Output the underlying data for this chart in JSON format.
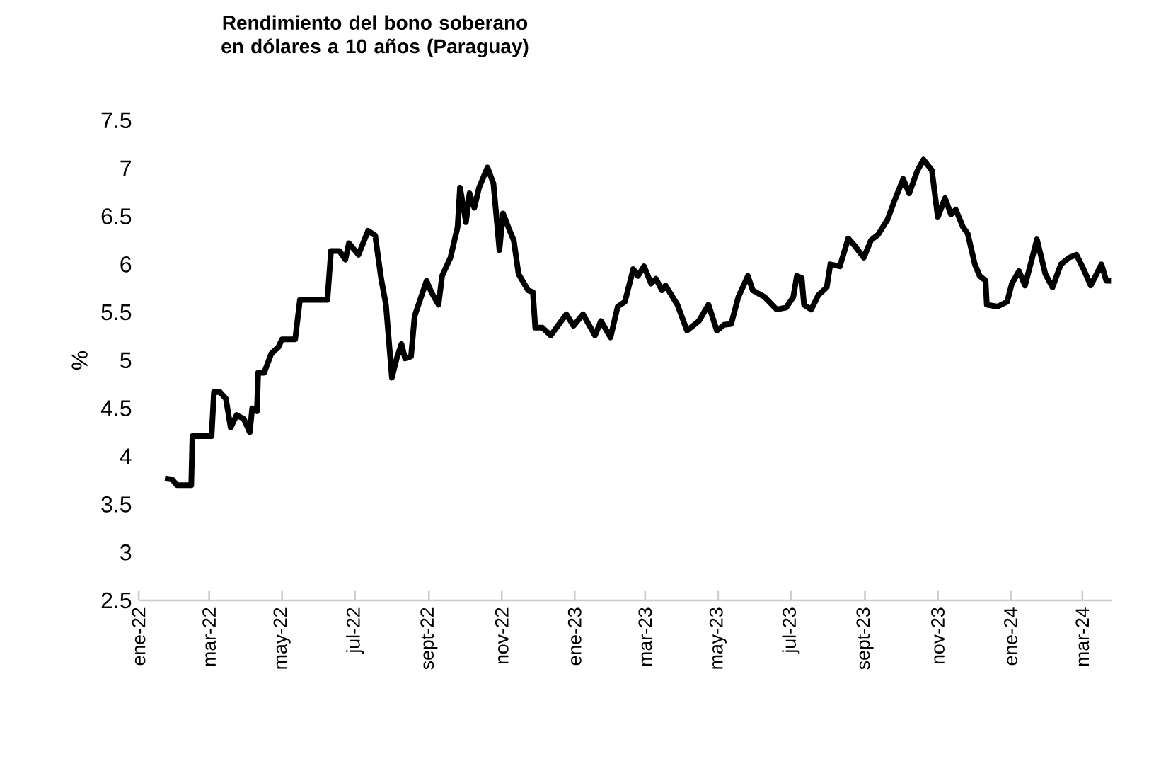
{
  "chart_data": {
    "type": "line",
    "title": "Rendimiento del bono soberano en dólares a 10 años (Paraguay)",
    "ylabel": "%",
    "xlim": [
      "2022-01-01",
      "2024-03-26"
    ],
    "xticks": [
      {
        "value": "2022-01-01",
        "label": "ene-22"
      },
      {
        "value": "2022-03-01",
        "label": "mar-22"
      },
      {
        "value": "2022-05-01",
        "label": "may-22"
      },
      {
        "value": "2022-07-01",
        "label": "jul-22"
      },
      {
        "value": "2022-09-01",
        "label": "sept-22"
      },
      {
        "value": "2022-11-01",
        "label": "nov-22"
      },
      {
        "value": "2023-01-01",
        "label": "ene-23"
      },
      {
        "value": "2023-03-01",
        "label": "mar-23"
      },
      {
        "value": "2023-05-01",
        "label": "may-23"
      },
      {
        "value": "2023-07-01",
        "label": "jul-23"
      },
      {
        "value": "2023-09-01",
        "label": "sept-23"
      },
      {
        "value": "2023-11-01",
        "label": "nov-23"
      },
      {
        "value": "2024-01-01",
        "label": "ene-24"
      },
      {
        "value": "2024-03-01",
        "label": "mar-24"
      }
    ],
    "ylim": [
      2.5,
      7.5
    ],
    "yticks": [
      2.5,
      3,
      3.5,
      4,
      4.5,
      5,
      5.5,
      6,
      6.5,
      7,
      7.5
    ],
    "grid": false,
    "marker": "none",
    "line_style": "solid",
    "series": [
      {
        "color": "#000000",
        "x": [
          "2022-01-23",
          "2022-01-29",
          "2022-02-02",
          "2022-02-14",
          "2022-02-15",
          "2022-03-03",
          "2022-03-05",
          "2022-03-10",
          "2022-03-15",
          "2022-03-19",
          "2022-03-24",
          "2022-03-30",
          "2022-04-04",
          "2022-04-06",
          "2022-04-10",
          "2022-04-11",
          "2022-04-16",
          "2022-04-22",
          "2022-04-28",
          "2022-05-01",
          "2022-05-12",
          "2022-05-16",
          "2022-06-08",
          "2022-06-11",
          "2022-06-18",
          "2022-06-23",
          "2022-06-26",
          "2022-07-04",
          "2022-07-12",
          "2022-07-18",
          "2022-07-23",
          "2022-07-27",
          "2022-08-01",
          "2022-08-05",
          "2022-08-09",
          "2022-08-12",
          "2022-08-17",
          "2022-08-20",
          "2022-08-30",
          "2022-09-03",
          "2022-09-09",
          "2022-09-12",
          "2022-09-19",
          "2022-09-25",
          "2022-09-27",
          "2022-10-02",
          "2022-10-05",
          "2022-10-09",
          "2022-10-13",
          "2022-10-20",
          "2022-10-25",
          "2022-10-30",
          "2022-11-02",
          "2022-11-07",
          "2022-11-11",
          "2022-11-15",
          "2022-11-23",
          "2022-11-27",
          "2022-11-29",
          "2022-12-05",
          "2022-12-12",
          "2022-12-25",
          "2022-12-31",
          "2023-01-08",
          "2023-01-18",
          "2023-01-23",
          "2023-01-31",
          "2023-02-06",
          "2023-02-12",
          "2023-02-19",
          "2023-02-23",
          "2023-02-28",
          "2023-03-06",
          "2023-03-10",
          "2023-03-15",
          "2023-03-18",
          "2023-03-28",
          "2023-04-05",
          "2023-04-15",
          "2023-04-23",
          "2023-04-30",
          "2023-05-06",
          "2023-05-12",
          "2023-05-18",
          "2023-05-26",
          "2023-05-30",
          "2023-06-09",
          "2023-06-19",
          "2023-06-27",
          "2023-07-03",
          "2023-07-06",
          "2023-07-10",
          "2023-07-12",
          "2023-07-18",
          "2023-07-24",
          "2023-07-31",
          "2023-08-03",
          "2023-08-11",
          "2023-08-18",
          "2023-08-23",
          "2023-08-31",
          "2023-09-06",
          "2023-09-12",
          "2023-09-20",
          "2023-09-25",
          "2023-10-03",
          "2023-10-08",
          "2023-10-15",
          "2023-10-20",
          "2023-10-27",
          "2023-11-01",
          "2023-11-07",
          "2023-11-12",
          "2023-11-16",
          "2023-11-22",
          "2023-11-26",
          "2023-12-02",
          "2023-12-06",
          "2023-12-11",
          "2023-12-12",
          "2023-12-21",
          "2023-12-29",
          "2024-01-02",
          "2024-01-08",
          "2024-01-13",
          "2024-01-23",
          "2024-01-30",
          "2024-02-05",
          "2024-02-12",
          "2024-02-19",
          "2024-02-25",
          "2024-03-02",
          "2024-03-08",
          "2024-03-17",
          "2024-03-21",
          "2024-03-25"
        ],
        "values": [
          3.77,
          3.76,
          3.7,
          3.7,
          4.21,
          4.21,
          4.67,
          4.67,
          4.6,
          4.3,
          4.43,
          4.39,
          4.25,
          4.5,
          4.47,
          4.87,
          4.87,
          5.07,
          5.14,
          5.22,
          5.22,
          5.63,
          5.63,
          6.14,
          6.14,
          6.05,
          6.22,
          6.1,
          6.35,
          6.3,
          5.85,
          5.58,
          4.82,
          5.02,
          5.17,
          5.02,
          5.04,
          5.46,
          5.83,
          5.71,
          5.58,
          5.88,
          6.07,
          6.39,
          6.8,
          6.44,
          6.74,
          6.59,
          6.8,
          7.01,
          6.84,
          6.15,
          6.53,
          6.37,
          6.25,
          5.9,
          5.73,
          5.71,
          5.34,
          5.34,
          5.26,
          5.48,
          5.36,
          5.48,
          5.26,
          5.41,
          5.24,
          5.56,
          5.61,
          5.95,
          5.88,
          5.98,
          5.8,
          5.85,
          5.73,
          5.78,
          5.58,
          5.31,
          5.41,
          5.58,
          5.31,
          5.37,
          5.38,
          5.66,
          5.88,
          5.73,
          5.66,
          5.53,
          5.55,
          5.66,
          5.88,
          5.86,
          5.58,
          5.53,
          5.68,
          5.76,
          6.0,
          5.98,
          6.27,
          6.2,
          6.07,
          6.25,
          6.31,
          6.47,
          6.64,
          6.89,
          6.74,
          6.98,
          7.09,
          6.98,
          6.49,
          6.69,
          6.52,
          6.57,
          6.39,
          6.32,
          6.0,
          5.88,
          5.83,
          5.58,
          5.56,
          5.61,
          5.8,
          5.93,
          5.78,
          6.26,
          5.9,
          5.76,
          6.0,
          6.07,
          6.1,
          5.95,
          5.78,
          6.0,
          5.83,
          5.83
        ]
      }
    ]
  }
}
